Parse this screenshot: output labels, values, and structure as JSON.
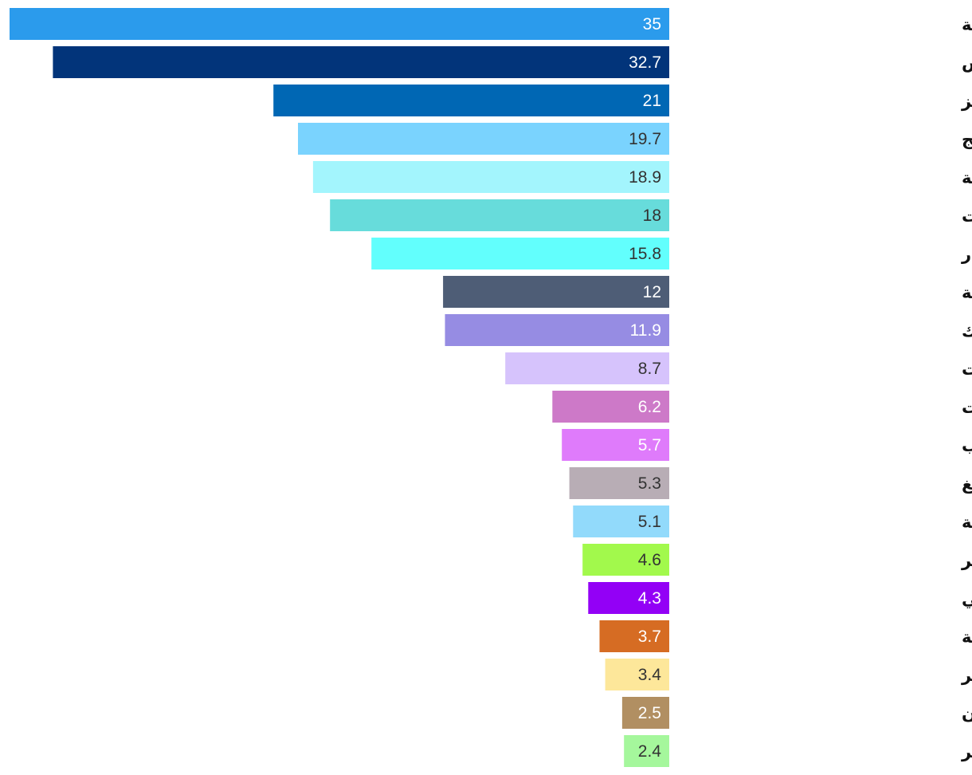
{
  "chart_data": {
    "type": "bar",
    "orientation": "horizontal",
    "direction": "rtl",
    "title": "",
    "xlabel": "",
    "ylabel": "",
    "xlim": [
      0,
      35
    ],
    "grid": false,
    "legend": "none",
    "categories": [
      "المنتجات الجلدية",
      "الملابس",
      "الصوف وشرانق دود القز",
      "الأرز المعالج",
      "المعدات والأجهزة الكهربائية",
      "المنسوجات",
      "المركبات وقطع الغيار",
      "المعادن الحديدية",
      "منتجات المطاط والبلاستيك",
      "الحواسيب والإلكترونيات والبصريات",
      "الخضراوات والفواكه والمكسرات",
      "منتجات الخشب",
      "المشروبات ومنتجات التبغ",
      "المنتجات الغذائية غير المصنفة",
      "المنتجات الورقية والنشر",
      "الغاز الطبيعي",
      "الزيوت والدهون النباتية",
      "السكر",
      "منتجات الألبان",
      "الحبوب غير المصنفة في موضع آخر"
    ],
    "values": [
      35,
      32.7,
      21,
      19.7,
      18.9,
      18,
      15.8,
      12,
      11.9,
      8.7,
      6.2,
      5.7,
      5.3,
      5.1,
      4.6,
      4.3,
      3.7,
      3.4,
      2.5,
      2.4
    ],
    "value_labels": [
      "35",
      "32.7",
      "21",
      "19.7",
      "18.9",
      "18",
      "15.8",
      "12",
      "11.9",
      "8.7",
      "6.2",
      "5.7",
      "5.3",
      "5.1",
      "4.6",
      "4.3",
      "3.7",
      "3.4",
      "2.5",
      "2.4"
    ],
    "colors": [
      "#2b9bec",
      "#02347a",
      "#0067b4",
      "#7ad3fe",
      "#a3f5fd",
      "#67dcdb",
      "#62fffd",
      "#4e5d76",
      "#968ce3",
      "#d6c3fc",
      "#cd79c8",
      "#df7bfb",
      "#b8adb5",
      "#92dafb",
      "#a2f94c",
      "#9300f6",
      "#d66c23",
      "#fde79a",
      "#b18f62",
      "#a5f79c"
    ],
    "label_colors": [
      "#ffffff",
      "#ffffff",
      "#ffffff",
      "#333333",
      "#333333",
      "#333333",
      "#333333",
      "#ffffff",
      "#ffffff",
      "#333333",
      "#ffffff",
      "#ffffff",
      "#333333",
      "#333333",
      "#333333",
      "#ffffff",
      "#ffffff",
      "#333333",
      "#ffffff",
      "#333333"
    ]
  }
}
